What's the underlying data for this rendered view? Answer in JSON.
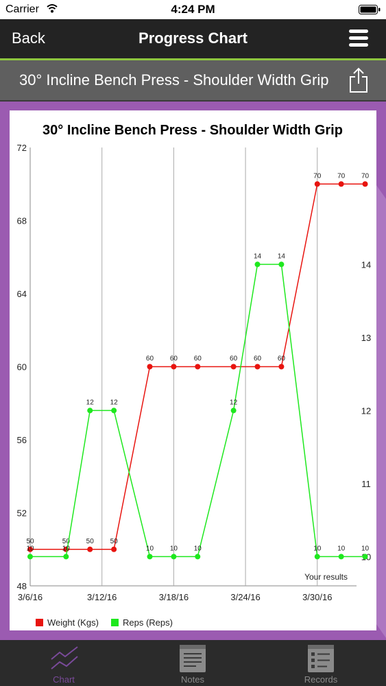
{
  "status_bar": {
    "carrier": "Carrier",
    "time": "4:24 PM"
  },
  "nav": {
    "back_label": "Back",
    "title": "Progress Chart"
  },
  "exercise_bar": {
    "name": "30° Incline Bench Press - Shoulder Width Grip"
  },
  "tabs": [
    {
      "label": "Chart",
      "icon": "chart-icon",
      "active": true
    },
    {
      "label": "Notes",
      "icon": "notes-icon",
      "active": false
    },
    {
      "label": "Records",
      "icon": "records-icon",
      "active": false
    }
  ],
  "colors": {
    "accent": "#8ec63f",
    "background": "#9b5bb1",
    "active_tab": "#7a4a9a",
    "weight": "#e8140f",
    "reps": "#1ee81e"
  },
  "chart_data": {
    "type": "line",
    "title": "30° Incline Bench Press - Shoulder Width Grip",
    "x": [
      0,
      1.5,
      2.5,
      3.5,
      5,
      6,
      7,
      8.5,
      9.5,
      10.5,
      12,
      13,
      14
    ],
    "xticks": [
      0,
      3,
      6,
      9,
      12
    ],
    "xtick_labels": [
      "3/6/16",
      "3/12/16",
      "3/18/16",
      "3/24/16",
      "3/30/16"
    ],
    "xlim": [
      0,
      14.5
    ],
    "ylim_left": [
      48,
      72
    ],
    "yticks_left": [
      "48",
      "52",
      "56",
      "60",
      "64",
      "68",
      "72"
    ],
    "ylim_right": [
      9.6,
      15.6
    ],
    "yticks_right": [
      "10",
      "11",
      "12",
      "13",
      "14"
    ],
    "grid": "vertical",
    "series": [
      {
        "name": "Weight (Kgs)",
        "axis": "left",
        "color": "#e8140f",
        "values": [
          50,
          50,
          50,
          50,
          60,
          60,
          60,
          60,
          60,
          60,
          70,
          70,
          70
        ]
      },
      {
        "name": "Reps (Reps)",
        "axis": "right",
        "color": "#1ee81e",
        "values": [
          10,
          10,
          12,
          12,
          10,
          10,
          10,
          12,
          14,
          14,
          10,
          10,
          10
        ]
      }
    ],
    "annotation": "Your results",
    "legend": "bottom-left"
  }
}
